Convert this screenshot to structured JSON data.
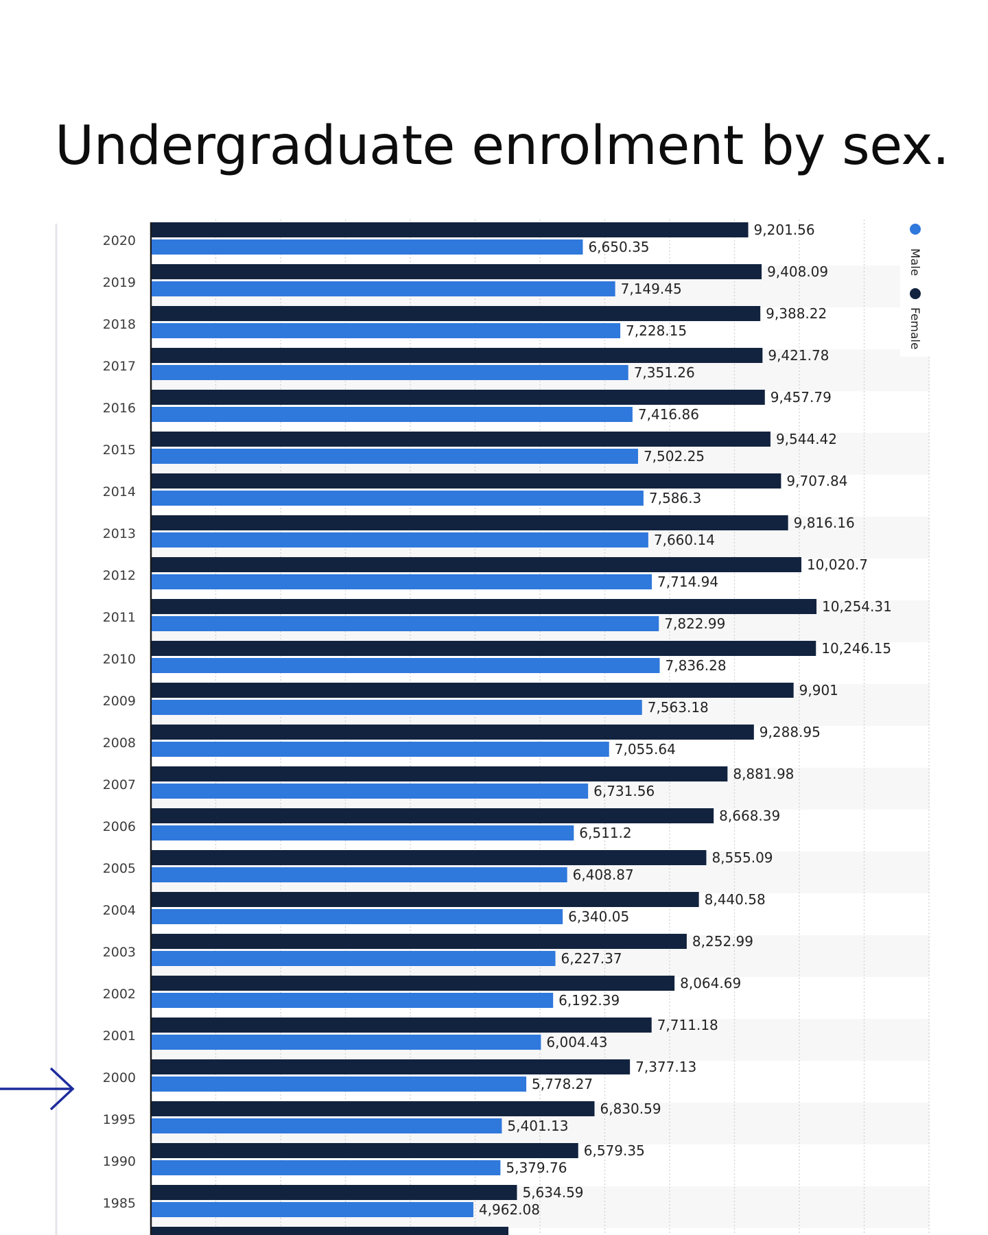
{
  "page": {
    "title": "Undergraduate enrolment by sex."
  },
  "colors": {
    "female": "#12233f",
    "male": "#2f78dc",
    "band": "#f7f7f8",
    "grid": "#cfcfcf",
    "axis": "#1a1a1a",
    "arrow": "#1c2b9c"
  },
  "chart_data": {
    "type": "bar",
    "orientation": "horizontal",
    "title": "Undergraduate enrolment by sex.",
    "xlabel": "",
    "ylabel": "",
    "xlim": [
      0,
      12000
    ],
    "grid": true,
    "legend_position": "top-right",
    "categories": [
      "2020",
      "2019",
      "2018",
      "2017",
      "2016",
      "2015",
      "2014",
      "2013",
      "2012",
      "2011",
      "2010",
      "2009",
      "2008",
      "2007",
      "2006",
      "2005",
      "2004",
      "2003",
      "2002",
      "2001",
      "2000",
      "1995",
      "1990",
      "1985"
    ],
    "series": [
      {
        "name": "Female",
        "color": "#12233f",
        "values": [
          9201.56,
          9408.09,
          9388.22,
          9421.78,
          9457.79,
          9544.42,
          9707.84,
          9816.16,
          10020.7,
          10254.31,
          10246.15,
          9901,
          9288.95,
          8881.98,
          8668.39,
          8555.09,
          8440.58,
          8252.99,
          8064.69,
          7711.18,
          7377.13,
          6830.59,
          6579.35,
          5634.59
        ],
        "labels": [
          "9,201.56",
          "9,408.09",
          "9,388.22",
          "9,421.78",
          "9,457.79",
          "9,544.42",
          "9,707.84",
          "9,816.16",
          "10,020.7",
          "10,254.31",
          "10,246.15",
          "9,901",
          "9,288.95",
          "8,881.98",
          "8,668.39",
          "8,555.09",
          "8,440.58",
          "8,252.99",
          "8,064.69",
          "7,711.18",
          "7,377.13",
          "6,830.59",
          "6,579.35",
          "5,634.59"
        ]
      },
      {
        "name": "Male",
        "color": "#2f78dc",
        "values": [
          6650.35,
          7149.45,
          7228.15,
          7351.26,
          7416.86,
          7502.25,
          7586.3,
          7660.14,
          7714.94,
          7822.99,
          7836.28,
          7563.18,
          7055.64,
          6731.56,
          6511.2,
          6408.87,
          6340.05,
          6227.37,
          6192.39,
          6004.43,
          5778.27,
          5401.13,
          5379.76,
          4962.08
        ],
        "labels": [
          "6,650.35",
          "7,149.45",
          "7,228.15",
          "7,351.26",
          "7,416.86",
          "7,502.25",
          "7,586.3",
          "7,660.14",
          "7,714.94",
          "7,822.99",
          "7,836.28",
          "7,563.18",
          "7,055.64",
          "6,731.56",
          "6,511.2",
          "6,408.87",
          "6,340.05",
          "6,227.37",
          "6,192.39",
          "6,004.43",
          "5,778.27",
          "5,401.13",
          "5,379.76",
          "4,962.08"
        ]
      }
    ],
    "legend": [
      "Male",
      "Female"
    ],
    "annotations": [
      {
        "type": "arrow",
        "points_to_category": "2000"
      }
    ]
  }
}
